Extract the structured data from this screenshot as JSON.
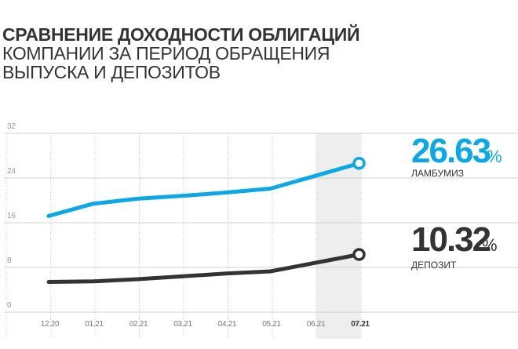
{
  "title_bold": "СРАВНЕНИЕ ДОХОДНОСТИ ОБЛИГАЦИЙ",
  "title_line2": "КОМПАНИИ ЗА ПЕРИОД ОБРАЩЕНИЯ",
  "title_line3": "ВЫПУСКА И ДЕПОЗИТОВ",
  "colors": {
    "bonds": "#0aa8e6",
    "deposit": "#333333",
    "highlight": "#eeeeee",
    "grid": "#d0d0d0"
  },
  "chart_data": {
    "type": "line",
    "title": "СРАВНЕНИЕ ДОХОДНОСТИ ОБЛИГАЦИЙ КОМПАНИИ ЗА ПЕРИОД ОБРАЩЕНИЯ ВЫПУСКА И ДЕПОЗИТОВ",
    "categories": [
      "12.20",
      "01.21",
      "02.21",
      "03.21",
      "04.21",
      "05.21",
      "06.21",
      "07.21"
    ],
    "highlighted_category": "07.21",
    "ylim": [
      0,
      32
    ],
    "yticks": [
      "32",
      "24",
      "16",
      "8",
      "0"
    ],
    "grid": true,
    "series": [
      {
        "name": "ЛАМБУМИЗ",
        "color": "#0aa8e6",
        "x": [
          0,
          1,
          2,
          3,
          4,
          5,
          6,
          7
        ],
        "values": [
          17.2,
          19.4,
          20.3,
          20.8,
          21.4,
          22.1,
          null,
          26.63
        ],
        "end_value": "26.63",
        "end_unit": "%"
      },
      {
        "name": "ДЕПОЗИТ",
        "color": "#333333",
        "x": [
          0,
          1,
          2,
          3,
          4,
          5,
          6,
          7
        ],
        "values": [
          5.4,
          5.5,
          5.9,
          6.4,
          6.9,
          7.3,
          null,
          10.32
        ],
        "end_value": "10.32",
        "end_unit": "%"
      }
    ]
  }
}
